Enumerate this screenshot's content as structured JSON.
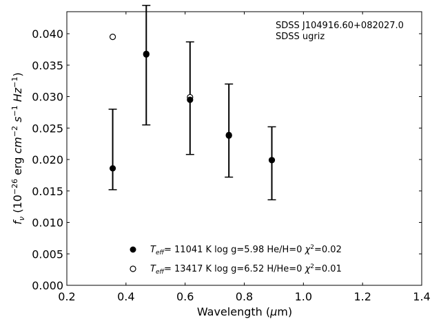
{
  "chart_data": {
    "type": "scatter",
    "annotation": [
      "SDSS J104916.60+082027.0",
      "SDSS ugriz"
    ],
    "xlabel": "Wavelength (μm)",
    "ylabel": "f_ν (10^−26 erg cm^−2 s^−1 Hz^−1)",
    "xlim": [
      0.2,
      1.4
    ],
    "ylim": [
      0.0,
      0.0435
    ],
    "xticks": [
      0.2,
      0.4,
      0.6,
      0.8,
      1.0,
      1.2,
      1.4
    ],
    "xtick_labels": [
      "0.2",
      "0.4",
      "0.6",
      "0.8",
      "1.0",
      "1.2",
      "1.4"
    ],
    "yticks": [
      0.0,
      0.005,
      0.01,
      0.015,
      0.02,
      0.025,
      0.03,
      0.035,
      0.04
    ],
    "ytick_labels": [
      "0.000",
      "0.005",
      "0.010",
      "0.015",
      "0.020",
      "0.025",
      "0.030",
      "0.035",
      "0.040"
    ],
    "grid": false,
    "legend_position": "lower-center",
    "observed": {
      "x": [
        0.3551,
        0.4686,
        0.6166,
        0.748,
        0.8932
      ],
      "y": [
        0.0186,
        0.0367,
        0.0295,
        0.0238,
        0.0199
      ],
      "yerr_low": [
        0.0152,
        0.0255,
        0.0208,
        0.0172,
        0.0136
      ],
      "yerr_high": [
        0.028,
        0.0445,
        0.0387,
        0.032,
        0.0252
      ]
    },
    "series": [
      {
        "name": "T_eff= 11041 K  log g=5.98  He/H=0  χ²=0.02",
        "marker": "filled",
        "x": [
          0.3551,
          0.4686,
          0.6166,
          0.748,
          0.8932
        ],
        "y": [
          0.0186,
          0.0367,
          0.0295,
          0.0238,
          0.0199
        ]
      },
      {
        "name": "T_eff= 13417 K  log g=6.52  H/He=0  χ²=0.01",
        "marker": "open",
        "x": [
          0.3551,
          0.4686,
          0.6166,
          0.748,
          0.8932
        ],
        "y": [
          0.0395,
          0.0368,
          0.0299,
          0.0239,
          0.0199
        ]
      }
    ]
  }
}
